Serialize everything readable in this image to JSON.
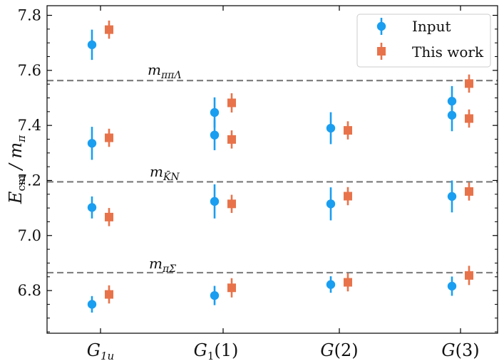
{
  "chart_data": {
    "type": "scatter",
    "title": "",
    "xlabel": "",
    "ylabel": "E_cm / m_π",
    "ylim": [
      6.645,
      7.835
    ],
    "yticks": [
      6.8,
      7.0,
      7.2,
      7.4,
      7.6,
      7.8
    ],
    "ytick_labels": [
      "6.8",
      "7.0",
      "7.2",
      "7.4",
      "7.6",
      "7.8"
    ],
    "categories": [
      "G1u",
      "G1(1)",
      "G(2)",
      "G(3)"
    ],
    "legend": {
      "placement": "top-right",
      "entries": [
        "Input",
        "This work"
      ]
    },
    "series": [
      {
        "name": "Input",
        "color": "#1a9ef0",
        "marker": "circle",
        "points": [
          {
            "cat": 0,
            "y": 7.693,
            "err": 0.055
          },
          {
            "cat": 0,
            "y": 7.335,
            "err": 0.06
          },
          {
            "cat": 0,
            "y": 7.102,
            "err": 0.04
          },
          {
            "cat": 0,
            "y": 6.75,
            "err": 0.03
          },
          {
            "cat": 1,
            "y": 7.447,
            "err": 0.055
          },
          {
            "cat": 1,
            "y": 7.365,
            "err": 0.055
          },
          {
            "cat": 1,
            "y": 7.124,
            "err": 0.062
          },
          {
            "cat": 1,
            "y": 6.782,
            "err": 0.035
          },
          {
            "cat": 2,
            "y": 7.39,
            "err": 0.058
          },
          {
            "cat": 2,
            "y": 7.115,
            "err": 0.06
          },
          {
            "cat": 2,
            "y": 6.822,
            "err": 0.03
          },
          {
            "cat": 3,
            "y": 7.488,
            "err": 0.055
          },
          {
            "cat": 3,
            "y": 7.437,
            "err": 0.058
          },
          {
            "cat": 3,
            "y": 7.142,
            "err": 0.058
          },
          {
            "cat": 3,
            "y": 6.816,
            "err": 0.035
          }
        ]
      },
      {
        "name": "This work",
        "color": "#e8734a",
        "marker": "square",
        "points": [
          {
            "cat": 0,
            "y": 7.748,
            "err": 0.033
          },
          {
            "cat": 0,
            "y": 7.355,
            "err": 0.033
          },
          {
            "cat": 0,
            "y": 7.067,
            "err": 0.033
          },
          {
            "cat": 0,
            "y": 6.786,
            "err": 0.033
          },
          {
            "cat": 1,
            "y": 7.482,
            "err": 0.035
          },
          {
            "cat": 1,
            "y": 7.349,
            "err": 0.033
          },
          {
            "cat": 1,
            "y": 7.115,
            "err": 0.033
          },
          {
            "cat": 1,
            "y": 6.81,
            "err": 0.035
          },
          {
            "cat": 2,
            "y": 7.382,
            "err": 0.033
          },
          {
            "cat": 2,
            "y": 7.143,
            "err": 0.033
          },
          {
            "cat": 2,
            "y": 6.83,
            "err": 0.033
          },
          {
            "cat": 3,
            "y": 7.552,
            "err": 0.033
          },
          {
            "cat": 3,
            "y": 7.425,
            "err": 0.033
          },
          {
            "cat": 3,
            "y": 7.16,
            "err": 0.033
          },
          {
            "cat": 3,
            "y": 6.855,
            "err": 0.035
          }
        ]
      }
    ],
    "reference_lines": [
      {
        "name": "m_ππΛ",
        "y": 7.563
      },
      {
        "name": "m_K̄N",
        "y": 7.195
      },
      {
        "name": "m_πΣ",
        "y": 6.865
      }
    ]
  }
}
